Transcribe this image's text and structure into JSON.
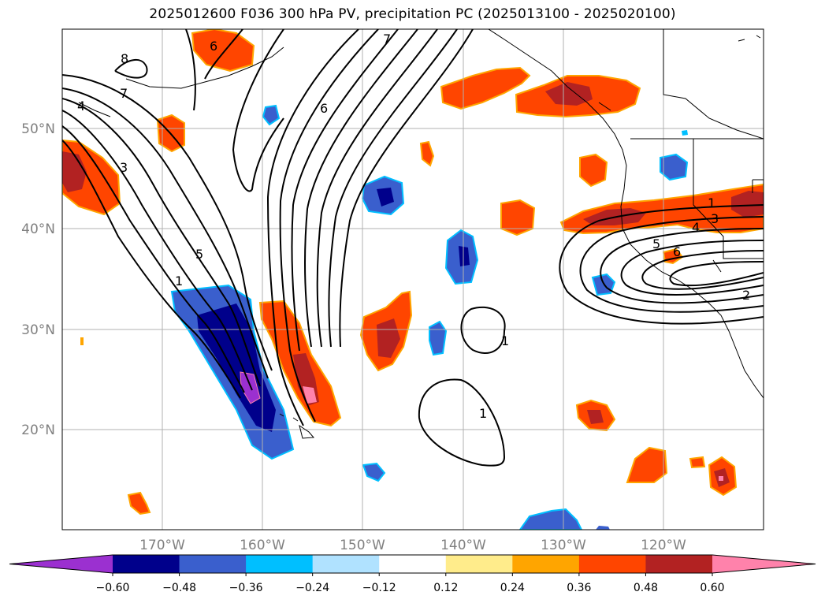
{
  "title": "2025012600 F036 300 hPa PV, precipitation PC (2025013100 - 2025020100)",
  "map": {
    "lat_labels": [
      "50°N",
      "40°N",
      "30°N",
      "20°N"
    ],
    "lon_labels": [
      "170°W",
      "160°W",
      "150°W",
      "140°W",
      "130°W",
      "120°W"
    ]
  },
  "pv_contour_labels": [
    "8",
    "7",
    "4",
    "3",
    "5",
    "1",
    "6",
    "7",
    "1",
    "1",
    "1",
    "3",
    "4",
    "5",
    "6",
    "2"
  ],
  "colorbar": {
    "colors": [
      "#9b30d0",
      "#00008b",
      "#3a5fcd",
      "#00bfff",
      "#b0e2ff",
      "#ffffff",
      "#ffec8b",
      "#ffa500",
      "#ff4500",
      "#b22222",
      "#ff82ab"
    ],
    "tick_labels": [
      "−0.60",
      "−0.48",
      "−0.36",
      "−0.24",
      "−0.12",
      "0.12",
      "0.24",
      "0.36",
      "0.48",
      "0.60"
    ]
  }
}
